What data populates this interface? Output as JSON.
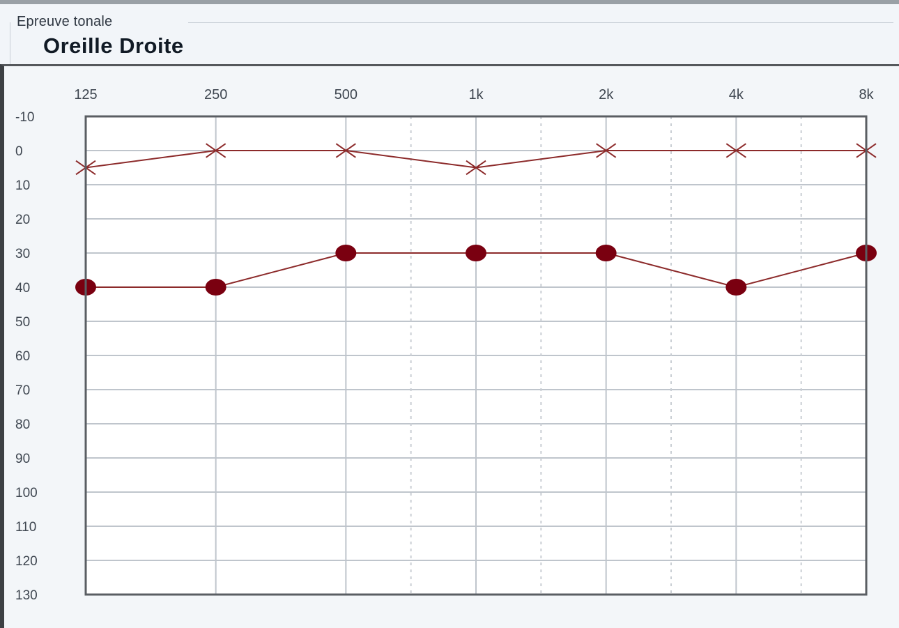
{
  "header": {
    "section_label": "Epreuve tonale",
    "ear_title": "Oreille Droite"
  },
  "colors": {
    "series": "#7a0010",
    "line": "#8c2a2a",
    "grid": "#bfc5cc",
    "grid_dotted": "#c9ced4",
    "plot_bg": "#ffffff"
  },
  "chart_data": {
    "type": "line",
    "title": "",
    "xlabel": "",
    "ylabel": "",
    "x": [
      "125",
      "250",
      "500",
      "1k",
      "2k",
      "4k",
      "8k"
    ],
    "y_ticks": [
      "-10",
      "0",
      "10",
      "20",
      "30",
      "40",
      "50",
      "60",
      "70",
      "80",
      "90",
      "100",
      "110",
      "120",
      "130"
    ],
    "ylim": [
      -10,
      130
    ],
    "y_inverted": true,
    "grid": true,
    "legend": "none",
    "series": [
      {
        "marker": "x-icon",
        "values": [
          5,
          0,
          0,
          5,
          0,
          0,
          0
        ]
      },
      {
        "marker": "filled-circle-icon",
        "values": [
          40,
          40,
          30,
          30,
          30,
          40,
          30
        ]
      }
    ]
  }
}
